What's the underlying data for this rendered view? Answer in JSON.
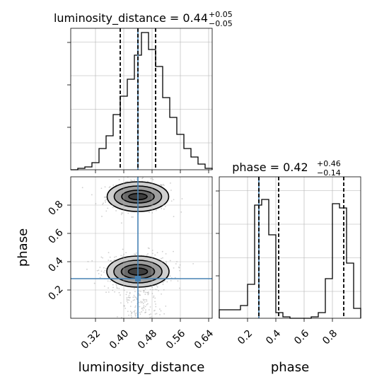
{
  "chart_data": [
    {
      "panel": "hist-luminosity_distance",
      "type": "histogram",
      "title": {
        "lead": "luminosity_distance = 0.44",
        "plus": "+0.05",
        "minus": "−0.05"
      },
      "xlim": [
        0.25,
        0.65
      ],
      "ylim": [
        0,
        1.0
      ],
      "grid": true,
      "bin_edges": [
        0.25,
        0.27,
        0.29,
        0.31,
        0.33,
        0.35,
        0.37,
        0.39,
        0.41,
        0.43,
        0.45,
        0.47,
        0.49,
        0.51,
        0.53,
        0.55,
        0.57,
        0.59,
        0.61,
        0.63,
        0.65
      ],
      "counts": [
        0.0,
        0.01,
        0.02,
        0.05,
        0.15,
        0.24,
        0.39,
        0.52,
        0.64,
        0.81,
        0.97,
        0.85,
        0.73,
        0.51,
        0.37,
        0.25,
        0.15,
        0.09,
        0.04,
        0.01
      ],
      "quantiles": [
        0.39,
        0.44,
        0.49
      ],
      "truth": 0.44
    },
    {
      "panel": "hist-phase",
      "type": "histogram",
      "title": {
        "lead": "phase = 0.42",
        "plus": "+0.46",
        "minus": "−0.14"
      },
      "xlim": [
        0.0,
        1.0
      ],
      "ylim": [
        0,
        1.0
      ],
      "xlabel": "phase",
      "xticks": [
        "0.2",
        "0.4",
        "0.6",
        "0.8"
      ],
      "xtick_values": [
        0.2,
        0.4,
        0.6,
        0.8
      ],
      "grid": true,
      "bin_edges": [
        0.0,
        0.05,
        0.1,
        0.15,
        0.2,
        0.25,
        0.3,
        0.35,
        0.4,
        0.45,
        0.5,
        0.55,
        0.6,
        0.65,
        0.7,
        0.75,
        0.8,
        0.85,
        0.9,
        0.95,
        1.0
      ],
      "counts": [
        0.06,
        0.06,
        0.06,
        0.09,
        0.24,
        0.8,
        0.84,
        0.59,
        0.04,
        0.01,
        0.0,
        0.0,
        0.0,
        0.01,
        0.04,
        0.28,
        0.81,
        0.78,
        0.39,
        0.07
      ],
      "quantiles": [
        0.28,
        0.42,
        0.88
      ],
      "truth": 0.28
    },
    {
      "panel": "2d-luminosity_distance-phase",
      "type": "scatter",
      "xlabel": "luminosity_distance",
      "ylabel": "phase",
      "xlim": [
        0.25,
        0.65
      ],
      "ylim": [
        0.0,
        1.0
      ],
      "xticks": [
        "0.32",
        "0.40",
        "0.48",
        "0.56",
        "0.64"
      ],
      "xtick_values": [
        0.32,
        0.4,
        0.48,
        0.56,
        0.64
      ],
      "yticks": [
        "0.2",
        "0.4",
        "0.6",
        "0.8"
      ],
      "ytick_values": [
        0.2,
        0.4,
        0.6,
        0.8
      ],
      "grid": true,
      "truth": {
        "x": 0.44,
        "y": 0.28
      },
      "clusters": [
        {
          "cx": 0.44,
          "cy": 0.86,
          "sx": 0.045,
          "sy": 0.055
        },
        {
          "cx": 0.44,
          "cy": 0.33,
          "sx": 0.045,
          "sy": 0.07
        }
      ],
      "contours": [
        {
          "cx": 0.44,
          "cy": 0.86,
          "rx": 0.087,
          "ry": 0.105,
          "fill": "#cfcfcf"
        },
        {
          "cx": 0.44,
          "cy": 0.86,
          "rx": 0.067,
          "ry": 0.075,
          "fill": "#9e9e9e"
        },
        {
          "cx": 0.44,
          "cy": 0.86,
          "rx": 0.046,
          "ry": 0.045,
          "fill": "#6a6a6a"
        },
        {
          "cx": 0.44,
          "cy": 0.86,
          "rx": 0.026,
          "ry": 0.022,
          "fill": "#3e3e3e"
        },
        {
          "cx": 0.44,
          "cy": 0.33,
          "rx": 0.088,
          "ry": 0.11,
          "fill": "#cfcfcf"
        },
        {
          "cx": 0.44,
          "cy": 0.33,
          "rx": 0.068,
          "ry": 0.08,
          "fill": "#9e9e9e"
        },
        {
          "cx": 0.44,
          "cy": 0.33,
          "rx": 0.047,
          "ry": 0.05,
          "fill": "#6a6a6a"
        },
        {
          "cx": 0.44,
          "cy": 0.33,
          "rx": 0.027,
          "ry": 0.025,
          "fill": "#3e3e3e"
        }
      ]
    }
  ],
  "colors": {
    "truth": "#4682b4",
    "line": "#000000",
    "grid": "#b0b0b0",
    "points": "#bdbdbd"
  }
}
